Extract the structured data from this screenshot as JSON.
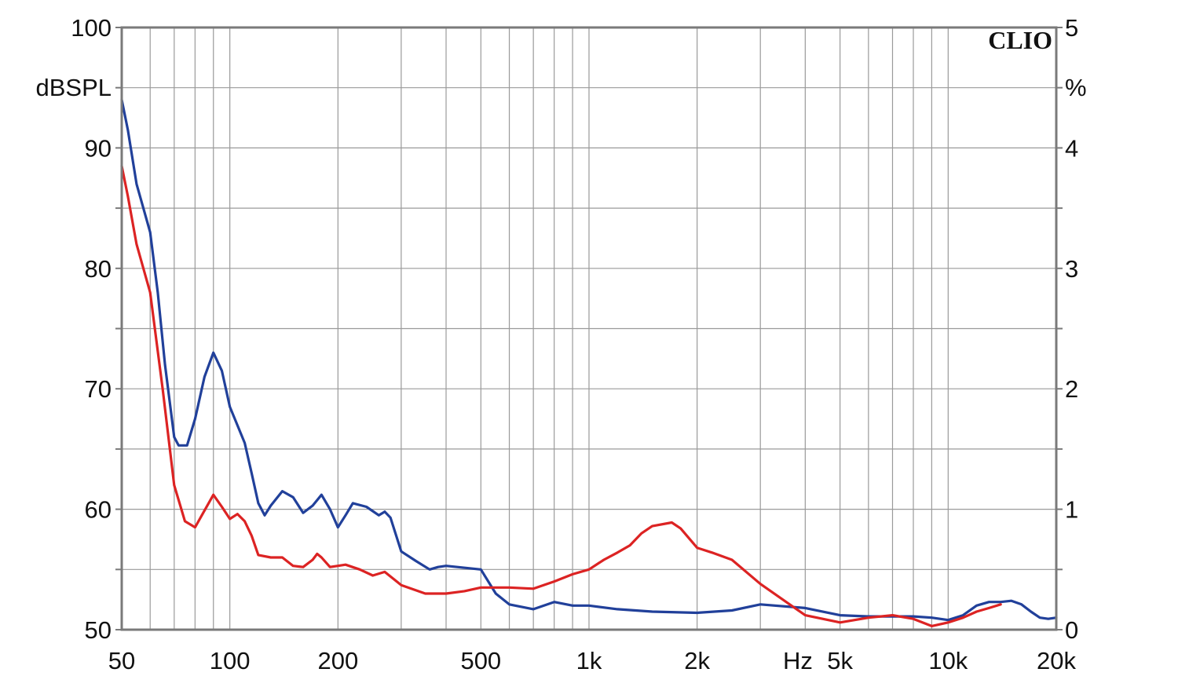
{
  "brand": "CLIO",
  "colors": {
    "series_red": "#dc2323",
    "series_blue": "#21409a",
    "grid": "#9a9a9a",
    "frame": "#7a7a7a"
  },
  "chart_data": {
    "type": "line",
    "x_scale": "log",
    "xlim": [
      50,
      20000
    ],
    "ylim_left": [
      50,
      100
    ],
    "ylim_right": [
      0,
      5
    ],
    "grid": true,
    "ylabel_left": "dBSPL",
    "ylabel_right": "%",
    "xlabel": "Hz",
    "x_ticks": [
      {
        "value": 50,
        "label": "50"
      },
      {
        "value": 100,
        "label": "100"
      },
      {
        "value": 200,
        "label": "200"
      },
      {
        "value": 500,
        "label": "500"
      },
      {
        "value": 1000,
        "label": "1k"
      },
      {
        "value": 2000,
        "label": "2k"
      },
      {
        "value": 5000,
        "label": "5k"
      },
      {
        "value": 10000,
        "label": "10k"
      },
      {
        "value": 20000,
        "label": "20k"
      }
    ],
    "y_ticks_left": [
      "100",
      "90",
      "80",
      "70",
      "60",
      "50"
    ],
    "y_ticks_right": [
      "5",
      "4",
      "3",
      "2",
      "1",
      "0"
    ],
    "series": [
      {
        "color": "#21409a",
        "points": [
          [
            50,
            94
          ],
          [
            52,
            91.5
          ],
          [
            55,
            87
          ],
          [
            60,
            83
          ],
          [
            63,
            78
          ],
          [
            66,
            72
          ],
          [
            70,
            66
          ],
          [
            72,
            65.3
          ],
          [
            76,
            65.3
          ],
          [
            80,
            67.5
          ],
          [
            85,
            71
          ],
          [
            90,
            73
          ],
          [
            95,
            71.5
          ],
          [
            100,
            68.5
          ],
          [
            110,
            65.5
          ],
          [
            115,
            63
          ],
          [
            120,
            60.5
          ],
          [
            125,
            59.5
          ],
          [
            130,
            60.3
          ],
          [
            140,
            61.5
          ],
          [
            150,
            61
          ],
          [
            160,
            59.7
          ],
          [
            170,
            60.3
          ],
          [
            180,
            61.2
          ],
          [
            190,
            60
          ],
          [
            200,
            58.5
          ],
          [
            210,
            59.5
          ],
          [
            220,
            60.5
          ],
          [
            240,
            60.2
          ],
          [
            260,
            59.5
          ],
          [
            270,
            59.8
          ],
          [
            280,
            59.3
          ],
          [
            300,
            56.5
          ],
          [
            330,
            55.7
          ],
          [
            360,
            55
          ],
          [
            380,
            55.2
          ],
          [
            400,
            55.3
          ],
          [
            500,
            55
          ],
          [
            550,
            53
          ],
          [
            600,
            52.1
          ],
          [
            700,
            51.7
          ],
          [
            800,
            52.3
          ],
          [
            900,
            52
          ],
          [
            1000,
            52
          ],
          [
            1200,
            51.7
          ],
          [
            1500,
            51.5
          ],
          [
            2000,
            51.4
          ],
          [
            2500,
            51.6
          ],
          [
            3000,
            52.1
          ],
          [
            4000,
            51.8
          ],
          [
            5000,
            51.2
          ],
          [
            6000,
            51.1
          ],
          [
            7000,
            51.1
          ],
          [
            8000,
            51.1
          ],
          [
            9000,
            51
          ],
          [
            10000,
            50.8
          ],
          [
            11000,
            51.2
          ],
          [
            12000,
            52
          ],
          [
            13000,
            52.3
          ],
          [
            14000,
            52.3
          ],
          [
            15000,
            52.4
          ],
          [
            16000,
            52.1
          ],
          [
            17000,
            51.5
          ],
          [
            18000,
            51
          ],
          [
            19000,
            50.9
          ],
          [
            20000,
            51
          ]
        ]
      },
      {
        "color": "#dc2323",
        "points": [
          [
            50,
            88.5
          ],
          [
            52,
            86
          ],
          [
            55,
            82
          ],
          [
            60,
            78
          ],
          [
            65,
            70
          ],
          [
            70,
            62
          ],
          [
            75,
            59
          ],
          [
            80,
            58.5
          ],
          [
            90,
            61.2
          ],
          [
            95,
            60.2
          ],
          [
            100,
            59.2
          ],
          [
            105,
            59.6
          ],
          [
            110,
            59
          ],
          [
            115,
            57.8
          ],
          [
            120,
            56.2
          ],
          [
            130,
            56
          ],
          [
            140,
            56
          ],
          [
            150,
            55.3
          ],
          [
            160,
            55.2
          ],
          [
            170,
            55.8
          ],
          [
            175,
            56.3
          ],
          [
            180,
            56
          ],
          [
            190,
            55.2
          ],
          [
            200,
            55.3
          ],
          [
            210,
            55.4
          ],
          [
            230,
            55
          ],
          [
            250,
            54.5
          ],
          [
            270,
            54.8
          ],
          [
            300,
            53.7
          ],
          [
            350,
            53
          ],
          [
            400,
            53
          ],
          [
            450,
            53.2
          ],
          [
            500,
            53.5
          ],
          [
            600,
            53.5
          ],
          [
            700,
            53.4
          ],
          [
            800,
            54
          ],
          [
            900,
            54.6
          ],
          [
            1000,
            55
          ],
          [
            1100,
            55.8
          ],
          [
            1200,
            56.4
          ],
          [
            1300,
            57
          ],
          [
            1400,
            58
          ],
          [
            1500,
            58.6
          ],
          [
            1700,
            58.9
          ],
          [
            1800,
            58.4
          ],
          [
            2000,
            56.8
          ],
          [
            2200,
            56.4
          ],
          [
            2500,
            55.8
          ],
          [
            3000,
            53.8
          ],
          [
            4000,
            51.2
          ],
          [
            5000,
            50.6
          ],
          [
            6000,
            51
          ],
          [
            7000,
            51.2
          ],
          [
            8000,
            50.9
          ],
          [
            9000,
            50.3
          ],
          [
            10000,
            50.6
          ],
          [
            11000,
            51
          ],
          [
            12000,
            51.5
          ],
          [
            13000,
            51.8
          ],
          [
            14000,
            52.1
          ]
        ]
      }
    ]
  }
}
